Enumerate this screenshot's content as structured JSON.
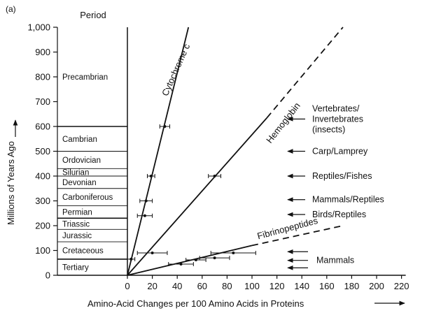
{
  "panel_label": "(a)",
  "chart_data": {
    "type": "line",
    "xlabel": "Amino-Acid Changes per 100 Amino Acids in Proteins",
    "ylabel": "Millions of Years Ago",
    "xlim": [
      0,
      220
    ],
    "ylim": [
      0,
      1000
    ],
    "x_ticks": [
      "0",
      "20",
      "40",
      "60",
      "80",
      "100",
      "120",
      "140",
      "160",
      "180",
      "200",
      "220"
    ],
    "y_ticks": [
      "0",
      "100",
      "200",
      "300",
      "400",
      "500",
      "600",
      "700",
      "800",
      "900",
      "1,000"
    ],
    "grid": false,
    "period_column": {
      "header": "Period",
      "periods": [
        {
          "label": "Tertiary",
          "from": 0,
          "to": 65
        },
        {
          "label": "Cretaceous",
          "from": 65,
          "to": 135
        },
        {
          "label": "Jurassic",
          "from": 135,
          "to": 185
        },
        {
          "label": "Triassic",
          "from": 185,
          "to": 230
        },
        {
          "label": "Permian",
          "from": 230,
          "to": 280
        },
        {
          "label": "Carboniferous",
          "from": 280,
          "to": 350
        },
        {
          "label": "Devonian",
          "from": 350,
          "to": 400
        },
        {
          "label": "Silurian",
          "from": 400,
          "to": 430
        },
        {
          "label": "Ordovician",
          "from": 430,
          "to": 500
        },
        {
          "label": "Cambrian",
          "from": 500,
          "to": 600
        },
        {
          "label": "Precambrian",
          "from": 600,
          "to": 1000
        }
      ]
    },
    "series": [
      {
        "name": "Cytochrome c",
        "solid": [
          [
            0,
            0
          ],
          [
            49,
            1000
          ]
        ],
        "dashed": null,
        "points": [
          {
            "x": 3,
            "y": 65,
            "xerr": 3
          },
          {
            "x": 15,
            "y": 300,
            "xerr": 5
          },
          {
            "x": 19,
            "y": 400,
            "xerr": 3
          },
          {
            "x": 30,
            "y": 600,
            "xerr": 4
          }
        ]
      },
      {
        "name": "Hemoglobin",
        "solid": [
          [
            0,
            0
          ],
          [
            112,
            635
          ]
        ],
        "dashed": [
          [
            112,
            635
          ],
          [
            173,
            1000
          ]
        ],
        "points": [
          {
            "x": 20,
            "y": 90,
            "xerr": 12
          },
          {
            "x": 14,
            "y": 240,
            "xerr": 6
          },
          {
            "x": 70,
            "y": 400,
            "xerr": 5
          }
        ]
      },
      {
        "name": "Fibrinopeptides",
        "solid": [
          [
            0,
            0
          ],
          [
            100,
            120
          ]
        ],
        "dashed": [
          [
            100,
            120
          ],
          [
            173,
            200
          ]
        ],
        "points": [
          {
            "x": 43,
            "y": 45,
            "xerr": 10
          },
          {
            "x": 55,
            "y": 62,
            "xerr": 8
          },
          {
            "x": 70,
            "y": 70,
            "xerr": 12
          },
          {
            "x": 85,
            "y": 90,
            "xerr": 18
          }
        ]
      }
    ],
    "annotations": [
      {
        "lines": [
          "Vertebrates/",
          "Invertebrates",
          "(insects)"
        ],
        "y": 630
      },
      {
        "lines": [
          "Carp/Lamprey"
        ],
        "y": 500
      },
      {
        "lines": [
          "Reptiles/Fishes"
        ],
        "y": 400
      },
      {
        "lines": [
          "Mammals/Reptiles"
        ],
        "y": 305
      },
      {
        "lines": [
          "Birds/Reptiles"
        ],
        "y": 245
      },
      {
        "lines": [
          "Mammals"
        ],
        "y": 60,
        "arrows_y": [
          95,
          60,
          30
        ]
      }
    ]
  }
}
